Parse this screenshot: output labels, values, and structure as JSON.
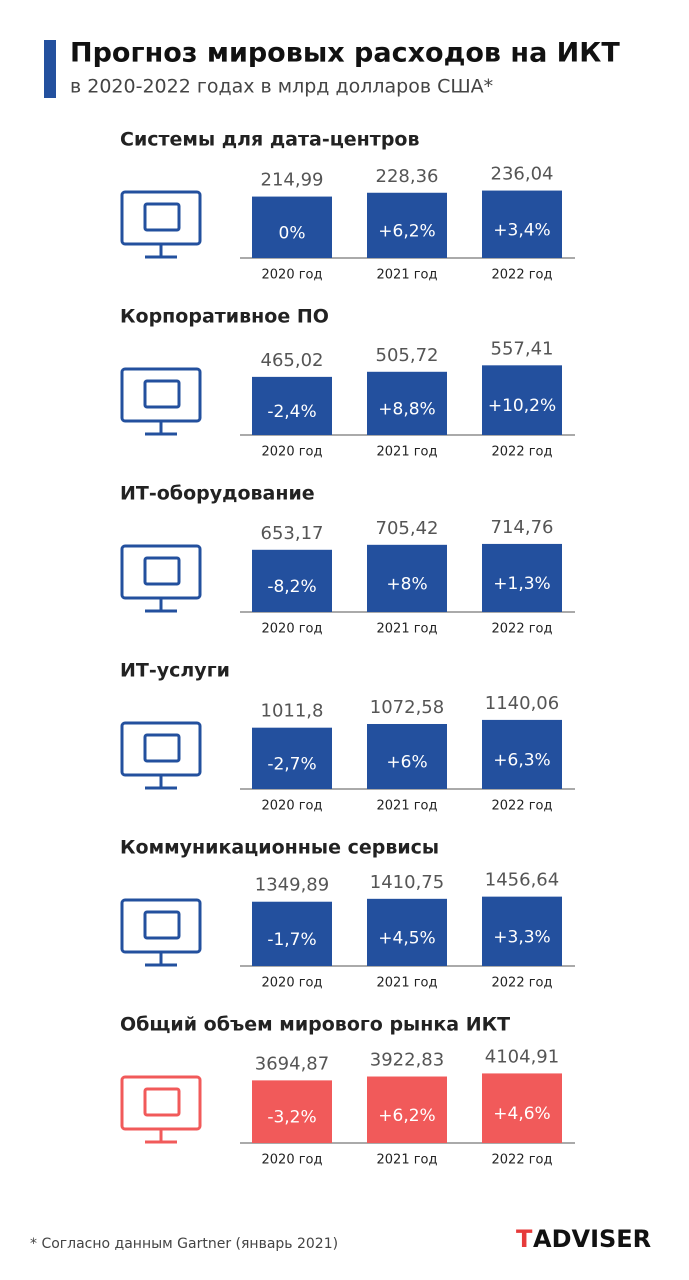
{
  "header": {
    "title": "Прогноз мировых расходов на ИКТ",
    "subtitle": "в 2020-2022 годах в млрд долларов США*"
  },
  "chart_data": [
    {
      "type": "bar",
      "title": "Системы для дата-центров",
      "categories": [
        "2020 год",
        "2021 год",
        "2022 год"
      ],
      "values": [
        214.99,
        228.36,
        236.04
      ],
      "value_labels": [
        "214,99",
        "228,36",
        "236,04"
      ],
      "change_labels": [
        "0%",
        "+6,2%",
        "+3,4%"
      ],
      "color": "#23509e",
      "ylim": [
        0,
        350
      ]
    },
    {
      "type": "bar",
      "title": "Корпоративное ПО",
      "categories": [
        "2020 год",
        "2021 год",
        "2022 год"
      ],
      "values": [
        465.02,
        505.72,
        557.41
      ],
      "value_labels": [
        "465,02",
        "505,72",
        "557,41"
      ],
      "change_labels": [
        "-2,4%",
        "+8,8%",
        "+10,2%"
      ],
      "color": "#23509e",
      "ylim": [
        0,
        800
      ]
    },
    {
      "type": "bar",
      "title": "ИТ-оборудование",
      "categories": [
        "2020 год",
        "2021 год",
        "2022 год"
      ],
      "values": [
        653.17,
        705.42,
        714.76
      ],
      "value_labels": [
        "653,17",
        "705,42",
        "714,76"
      ],
      "change_labels": [
        "-8,2%",
        "+8%",
        "+1,3%"
      ],
      "color": "#23509e",
      "ylim": [
        0,
        1050
      ]
    },
    {
      "type": "bar",
      "title": "ИТ-услуги",
      "categories": [
        "2020 год",
        "2021 год",
        "2022 год"
      ],
      "values": [
        1011.8,
        1072.58,
        1140.06
      ],
      "value_labels": [
        "1011,8",
        "1072,58",
        "1140,06"
      ],
      "change_labels": [
        "-2,7%",
        "+6%",
        "+6,3%"
      ],
      "color": "#23509e",
      "ylim": [
        0,
        1650
      ]
    },
    {
      "type": "bar",
      "title": "Коммуникационные сервисы",
      "categories": [
        "2020 год",
        "2021 год",
        "2022 год"
      ],
      "values": [
        1349.89,
        1410.75,
        1456.64
      ],
      "value_labels": [
        "1349,89",
        "1410,75",
        "1456,64"
      ],
      "change_labels": [
        "-1,7%",
        "+4,5%",
        "+3,3%"
      ],
      "color": "#23509e",
      "ylim": [
        0,
        2100
      ]
    },
    {
      "type": "bar",
      "title": "Общий объем мирового рынка ИКТ",
      "categories": [
        "2020 год",
        "2021 год",
        "2022 год"
      ],
      "values": [
        3694.87,
        3922.83,
        4104.91
      ],
      "value_labels": [
        "3694,87",
        "3922,83",
        "4104,91"
      ],
      "change_labels": [
        "-3,2%",
        "+6,2%",
        "+4,6%"
      ],
      "color": "#f15a5a",
      "ylim": [
        0,
        5900
      ]
    }
  ],
  "footnote": "* Согласно данным Gartner (январь 2021)",
  "logo": [
    "T",
    "ADVISER"
  ]
}
